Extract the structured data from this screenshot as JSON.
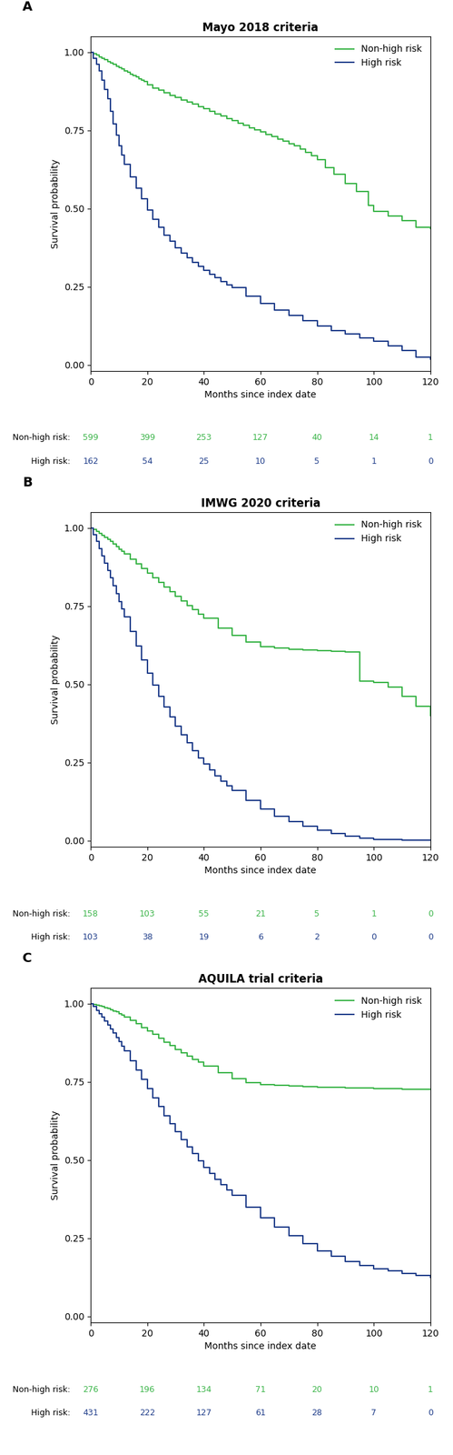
{
  "chart_data": [
    {
      "type": "step",
      "title": "Mayo 2018 criteria",
      "panel_label": "A",
      "x_label": "Months since index date",
      "y_label": "Survival probability",
      "xlim": [
        0,
        120
      ],
      "xticks": [
        0,
        20,
        40,
        60,
        80,
        100,
        120
      ],
      "ylim": [
        -0.02,
        1.05
      ],
      "yticks": [
        {
          "value": 0.0,
          "label": "0.00"
        },
        {
          "value": 0.25,
          "label": "0.25"
        },
        {
          "value": 0.5,
          "label": "0.50"
        },
        {
          "value": 0.75,
          "label": "0.75"
        },
        {
          "value": 1.0,
          "label": "1.00"
        }
      ],
      "grid": false,
      "legend": "upper right",
      "series": [
        {
          "name": "Non-high risk",
          "color": "#3cb54a",
          "x": [
            0,
            1,
            2,
            3,
            4,
            5,
            6,
            7,
            8,
            9,
            10,
            11,
            12,
            13,
            14,
            15,
            16,
            17,
            18,
            19,
            20,
            22,
            24,
            26,
            28,
            30,
            32,
            34,
            36,
            38,
            40,
            42,
            44,
            46,
            48,
            50,
            52,
            54,
            56,
            58,
            60,
            62,
            64,
            66,
            68,
            70,
            72,
            74,
            76,
            78,
            80,
            83,
            86,
            90,
            94,
            98,
            100,
            105,
            110,
            115,
            120
          ],
          "values": [
            1.0,
            0.995,
            0.99,
            0.985,
            0.98,
            0.975,
            0.97,
            0.965,
            0.96,
            0.955,
            0.95,
            0.945,
            0.94,
            0.935,
            0.93,
            0.925,
            0.92,
            0.915,
            0.91,
            0.905,
            0.895,
            0.885,
            0.878,
            0.87,
            0.862,
            0.855,
            0.847,
            0.84,
            0.833,
            0.826,
            0.818,
            0.81,
            0.802,
            0.795,
            0.787,
            0.78,
            0.773,
            0.766,
            0.758,
            0.751,
            0.744,
            0.737,
            0.73,
            0.722,
            0.715,
            0.707,
            0.7,
            0.69,
            0.68,
            0.668,
            0.655,
            0.63,
            0.61,
            0.58,
            0.555,
            0.51,
            0.49,
            0.475,
            0.46,
            0.44,
            0.435
          ]
        },
        {
          "name": "High risk",
          "color": "#1f3d8a",
          "x": [
            0,
            1,
            2,
            3,
            4,
            5,
            6,
            7,
            8,
            9,
            10,
            11,
            12,
            14,
            16,
            18,
            20,
            22,
            24,
            26,
            28,
            30,
            32,
            34,
            36,
            38,
            40,
            42,
            44,
            46,
            48,
            50,
            55,
            60,
            65,
            70,
            75,
            80,
            85,
            90,
            95,
            100,
            105,
            110,
            115,
            120
          ],
          "values": [
            1.0,
            0.98,
            0.96,
            0.94,
            0.91,
            0.88,
            0.85,
            0.81,
            0.77,
            0.735,
            0.7,
            0.67,
            0.64,
            0.6,
            0.565,
            0.53,
            0.495,
            0.465,
            0.44,
            0.415,
            0.395,
            0.375,
            0.358,
            0.342,
            0.328,
            0.315,
            0.302,
            0.29,
            0.278,
            0.267,
            0.256,
            0.246,
            0.22,
            0.195,
            0.175,
            0.157,
            0.14,
            0.125,
            0.11,
            0.098,
            0.085,
            0.075,
            0.06,
            0.045,
            0.025,
            0.018
          ]
        }
      ],
      "at_risk": {
        "x": [
          0,
          20,
          40,
          60,
          80,
          100,
          120
        ],
        "rows": [
          {
            "label": "Non-high risk:",
            "series": "Non-high risk",
            "values": [
              599,
              399,
              253,
              127,
              40,
              14,
              1
            ]
          },
          {
            "label": "High risk:",
            "series": "High risk",
            "values": [
              162,
              54,
              25,
              10,
              5,
              1,
              0
            ]
          }
        ]
      }
    },
    {
      "type": "step",
      "title": "IMWG 2020 criteria",
      "panel_label": "B",
      "x_label": "Months since index date",
      "y_label": "Survival probability",
      "xlim": [
        0,
        120
      ],
      "xticks": [
        0,
        20,
        40,
        60,
        80,
        100,
        120
      ],
      "ylim": [
        -0.02,
        1.05
      ],
      "yticks": [
        {
          "value": 0.0,
          "label": "0.00"
        },
        {
          "value": 0.25,
          "label": "0.25"
        },
        {
          "value": 0.5,
          "label": "0.50"
        },
        {
          "value": 0.75,
          "label": "0.75"
        },
        {
          "value": 1.0,
          "label": "1.00"
        }
      ],
      "grid": false,
      "legend": "upper right",
      "series": [
        {
          "name": "Non-high risk",
          "color": "#3cb54a",
          "x": [
            0,
            1,
            2,
            3,
            4,
            5,
            6,
            7,
            8,
            9,
            10,
            11,
            12,
            14,
            16,
            18,
            20,
            22,
            24,
            26,
            28,
            30,
            32,
            34,
            36,
            38,
            40,
            45,
            50,
            55,
            60,
            65,
            70,
            75,
            80,
            85,
            90,
            95,
            100,
            105,
            110,
            115,
            120
          ],
          "values": [
            1.0,
            0.995,
            0.988,
            0.982,
            0.976,
            0.97,
            0.963,
            0.956,
            0.948,
            0.94,
            0.932,
            0.924,
            0.916,
            0.9,
            0.885,
            0.87,
            0.855,
            0.84,
            0.825,
            0.81,
            0.795,
            0.78,
            0.766,
            0.752,
            0.738,
            0.724,
            0.71,
            0.68,
            0.655,
            0.635,
            0.62,
            0.615,
            0.612,
            0.61,
            0.608,
            0.605,
            0.602,
            0.51,
            0.505,
            0.49,
            0.46,
            0.43,
            0.4
          ]
        },
        {
          "name": "High risk",
          "color": "#1f3d8a",
          "x": [
            0,
            1,
            2,
            3,
            4,
            5,
            6,
            7,
            8,
            9,
            10,
            11,
            12,
            14,
            16,
            18,
            20,
            22,
            24,
            26,
            28,
            30,
            32,
            34,
            36,
            38,
            40,
            42,
            44,
            46,
            48,
            50,
            55,
            60,
            65,
            70,
            75,
            80,
            85,
            90,
            95,
            100,
            105,
            110,
            115,
            120
          ],
          "values": [
            1.0,
            0.978,
            0.956,
            0.933,
            0.91,
            0.887,
            0.863,
            0.84,
            0.815,
            0.79,
            0.765,
            0.74,
            0.715,
            0.668,
            0.622,
            0.578,
            0.535,
            0.498,
            0.462,
            0.428,
            0.396,
            0.366,
            0.338,
            0.312,
            0.288,
            0.265,
            0.244,
            0.225,
            0.207,
            0.19,
            0.174,
            0.16,
            0.128,
            0.1,
            0.078,
            0.06,
            0.045,
            0.033,
            0.023,
            0.015,
            0.008,
            0.004,
            0.003,
            0.002,
            0.001,
            0.001
          ]
        }
      ],
      "at_risk": {
        "x": [
          0,
          20,
          40,
          60,
          80,
          100,
          120
        ],
        "rows": [
          {
            "label": "Non-high risk:",
            "series": "Non-high risk",
            "values": [
              158,
              103,
              55,
              21,
              5,
              1,
              0
            ]
          },
          {
            "label": "High risk:",
            "series": "High risk",
            "values": [
              103,
              38,
              19,
              6,
              2,
              0,
              0
            ]
          }
        ]
      }
    },
    {
      "type": "step",
      "title": "AQUILA trial criteria",
      "panel_label": "C",
      "x_label": "Months since index date",
      "y_label": "Survival probability",
      "xlim": [
        0,
        120
      ],
      "xticks": [
        0,
        20,
        40,
        60,
        80,
        100,
        120
      ],
      "ylim": [
        -0.02,
        1.05
      ],
      "yticks": [
        {
          "value": 0.0,
          "label": "0.00"
        },
        {
          "value": 0.25,
          "label": "0.25"
        },
        {
          "value": 0.5,
          "label": "0.50"
        },
        {
          "value": 0.75,
          "label": "0.75"
        },
        {
          "value": 1.0,
          "label": "1.00"
        }
      ],
      "grid": false,
      "legend": "upper right",
      "series": [
        {
          "name": "Non-high risk",
          "color": "#3cb54a",
          "x": [
            0,
            1,
            2,
            3,
            4,
            5,
            6,
            7,
            8,
            9,
            10,
            11,
            12,
            14,
            16,
            18,
            20,
            22,
            24,
            26,
            28,
            30,
            32,
            34,
            36,
            38,
            40,
            45,
            50,
            55,
            60,
            65,
            70,
            75,
            80,
            85,
            90,
            95,
            100,
            105,
            110,
            115,
            120
          ],
          "values": [
            1.0,
            0.998,
            0.996,
            0.993,
            0.99,
            0.987,
            0.984,
            0.981,
            0.977,
            0.973,
            0.968,
            0.963,
            0.957,
            0.946,
            0.935,
            0.924,
            0.912,
            0.901,
            0.889,
            0.877,
            0.865,
            0.854,
            0.843,
            0.833,
            0.822,
            0.812,
            0.801,
            0.78,
            0.76,
            0.748,
            0.74,
            0.738,
            0.736,
            0.734,
            0.733,
            0.732,
            0.731,
            0.73,
            0.729,
            0.728,
            0.727,
            0.726,
            0.725
          ]
        },
        {
          "name": "High risk",
          "color": "#1f3d8a",
          "x": [
            0,
            1,
            2,
            3,
            4,
            5,
            6,
            7,
            8,
            9,
            10,
            11,
            12,
            14,
            16,
            18,
            20,
            22,
            24,
            26,
            28,
            30,
            32,
            34,
            36,
            38,
            40,
            42,
            44,
            46,
            48,
            50,
            55,
            60,
            65,
            70,
            75,
            80,
            85,
            90,
            95,
            100,
            105,
            110,
            115,
            120
          ],
          "values": [
            1.0,
            0.99,
            0.979,
            0.968,
            0.956,
            0.944,
            0.932,
            0.919,
            0.906,
            0.892,
            0.878,
            0.863,
            0.848,
            0.818,
            0.788,
            0.758,
            0.728,
            0.699,
            0.67,
            0.642,
            0.616,
            0.59,
            0.566,
            0.542,
            0.52,
            0.498,
            0.477,
            0.457,
            0.438,
            0.42,
            0.403,
            0.387,
            0.35,
            0.316,
            0.285,
            0.257,
            0.232,
            0.21,
            0.192,
            0.176,
            0.163,
            0.152,
            0.145,
            0.138,
            0.13,
            0.125
          ]
        }
      ],
      "at_risk": {
        "x": [
          0,
          20,
          40,
          60,
          80,
          100,
          120
        ],
        "rows": [
          {
            "label": "Non-high risk:",
            "series": "Non-high risk",
            "values": [
              276,
              196,
              134,
              71,
              20,
              10,
              1
            ]
          },
          {
            "label": "High risk:",
            "series": "High risk",
            "values": [
              431,
              222,
              127,
              61,
              28,
              7,
              0
            ]
          }
        ]
      }
    }
  ]
}
